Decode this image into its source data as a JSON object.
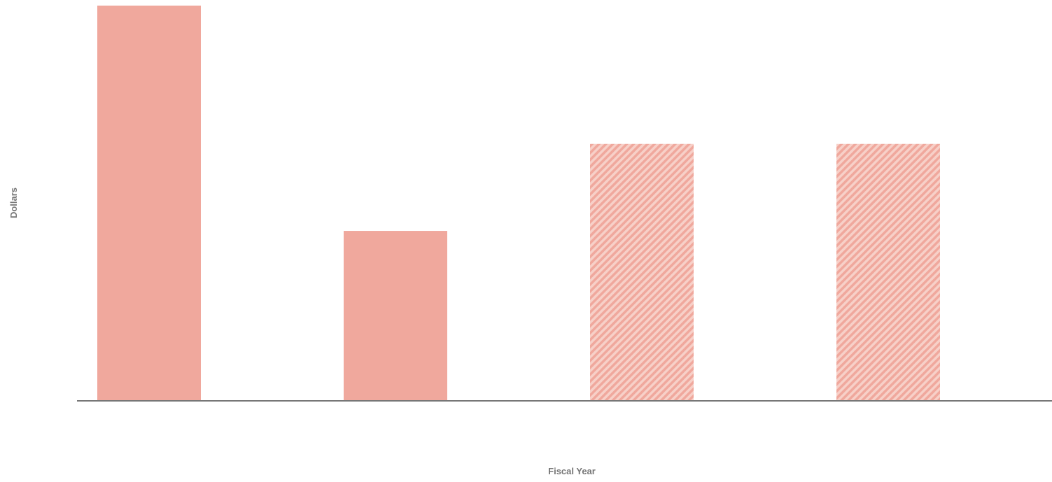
{
  "chart_data": {
    "type": "bar",
    "title": "",
    "xlabel": "Fiscal Year",
    "ylabel": "Dollars",
    "categories": [
      "",
      "",
      "",
      ""
    ],
    "values": [
      100,
      43,
      65,
      65
    ],
    "projected": [
      false,
      false,
      true,
      true
    ],
    "ylim": [
      0,
      100
    ],
    "grid": false,
    "legend": "none",
    "colors": {
      "bar": "#f0a89d",
      "hatch_background": "#f7d0c8",
      "axis_line": "#777777",
      "axis_text": "#777777"
    }
  }
}
